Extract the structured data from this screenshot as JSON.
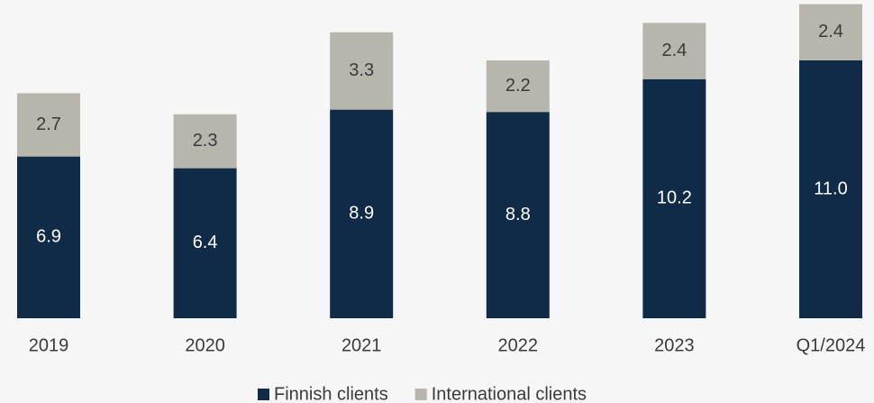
{
  "chart_data": {
    "type": "stacked_bar",
    "categories": [
      "2019",
      "2020",
      "2021",
      "2022",
      "2023",
      "Q1/2024"
    ],
    "series": [
      {
        "name": "Finnish clients",
        "color": "#0f2b47",
        "values": [
          6.9,
          6.4,
          8.9,
          8.8,
          10.2,
          11.0
        ],
        "value_labels": [
          "6.9",
          "6.4",
          "8.9",
          "8.8",
          "10.2",
          "11.0"
        ]
      },
      {
        "name": "International clients",
        "color": "#b8b5ad",
        "values": [
          2.7,
          2.3,
          3.3,
          2.2,
          2.4,
          2.4
        ]
      }
    ],
    "ylim": [
      0,
      13.5
    ],
    "legend": "bottom"
  }
}
